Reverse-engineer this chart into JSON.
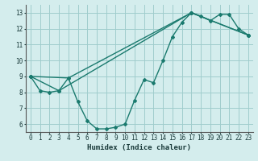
{
  "xlabel": "Humidex (Indice chaleur)",
  "line1_x": [
    0,
    1,
    2,
    3,
    4,
    5,
    6,
    7,
    8,
    9,
    10,
    11,
    12,
    13,
    14,
    15,
    16,
    17,
    18,
    19,
    20,
    21,
    22,
    23
  ],
  "line1_y": [
    9.0,
    8.1,
    8.0,
    8.1,
    8.9,
    7.4,
    6.2,
    5.7,
    5.7,
    5.8,
    6.0,
    7.5,
    8.8,
    8.6,
    10.0,
    11.5,
    12.4,
    13.0,
    12.8,
    12.5,
    12.9,
    12.9,
    12.0,
    11.6
  ],
  "line2_x": [
    0,
    4,
    17,
    23
  ],
  "line2_y": [
    9.0,
    8.9,
    13.0,
    11.6
  ],
  "line3_x": [
    0,
    3,
    17,
    23
  ],
  "line3_y": [
    9.0,
    8.1,
    13.0,
    11.6
  ],
  "line_color": "#1a7a6e",
  "bg_color": "#d4eded",
  "grid_color": "#a0cccc",
  "ylim": [
    5.5,
    13.5
  ],
  "xlim": [
    -0.5,
    23.5
  ],
  "yticks": [
    6,
    7,
    8,
    9,
    10,
    11,
    12,
    13
  ],
  "xticks": [
    0,
    1,
    2,
    3,
    4,
    5,
    6,
    7,
    8,
    9,
    10,
    11,
    12,
    13,
    14,
    15,
    16,
    17,
    18,
    19,
    20,
    21,
    22,
    23
  ]
}
